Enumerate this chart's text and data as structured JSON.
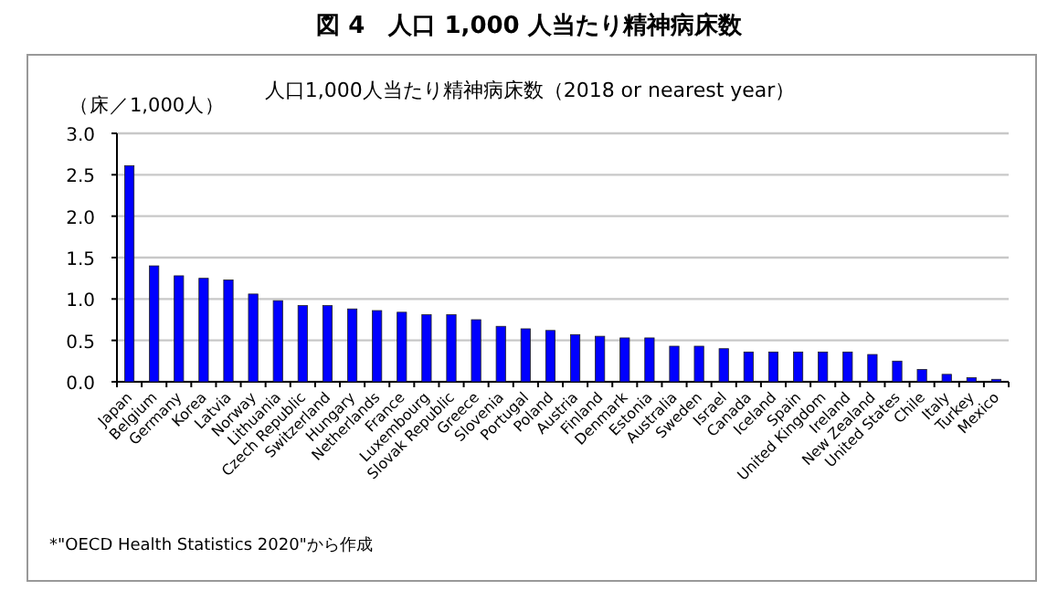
{
  "chart_data": {
    "type": "bar",
    "title": "図 4　人口 1,000 人当たり精神病床数",
    "subtitle": "人口1,000人当たり精神病床数（2018 or nearest year）",
    "ylabel": "（床／1,000人）",
    "categories": [
      "Japan",
      "Belgium",
      "Germany",
      "Korea",
      "Latvia",
      "Norway",
      "Lithuania",
      "Czech Republic",
      "Switzerland",
      "Hungary",
      "Netherlands",
      "France",
      "Luxembourg",
      "Slovak Republic",
      "Greece",
      "Slovenia",
      "Portugal",
      "Poland",
      "Austria",
      "Finland",
      "Denmark",
      "Estonia",
      "Australia",
      "Sweden",
      "Israel",
      "Canada",
      "Iceland",
      "Spain",
      "United Kingdom",
      "Ireland",
      "New Zealand",
      "United States",
      "Chile",
      "Italy",
      "Turkey",
      "Mexico"
    ],
    "values": [
      2.61,
      1.4,
      1.28,
      1.25,
      1.23,
      1.06,
      0.98,
      0.92,
      0.92,
      0.88,
      0.86,
      0.84,
      0.81,
      0.81,
      0.75,
      0.67,
      0.64,
      0.62,
      0.57,
      0.55,
      0.53,
      0.53,
      0.43,
      0.43,
      0.4,
      0.36,
      0.36,
      0.36,
      0.36,
      0.36,
      0.33,
      0.25,
      0.15,
      0.09,
      0.05,
      0.03
    ],
    "color": "#0000ff",
    "ylim": [
      0,
      3
    ],
    "yticks": [
      {
        "value": 0,
        "label": "0.0"
      },
      {
        "value": 0.5,
        "label": "0.5"
      },
      {
        "value": 1,
        "label": "1.0"
      },
      {
        "value": 1.5,
        "label": "1.5"
      },
      {
        "value": 2,
        "label": "2.0"
      },
      {
        "value": 2.5,
        "label": "2.5"
      },
      {
        "value": 3,
        "label": "3.0"
      }
    ],
    "grid": "y",
    "annotations": [
      "*\"OECD Health Statistics 2020\"から作成"
    ]
  }
}
